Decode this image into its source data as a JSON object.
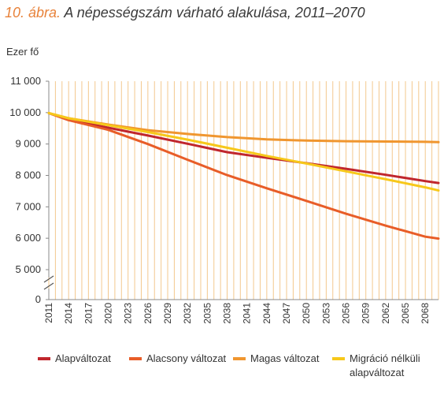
{
  "title": {
    "number": "10. ábra.",
    "text": "A népességszám várható alakulása, 2011–2070"
  },
  "colors": {
    "Alapváltozat": "#c0262d",
    "Alacsony változat": "#e85d28",
    "Magas változat": "#f0962f",
    "Migráció nélküli alapváltozat": "#f7c81a",
    "grid": "#f3c88e",
    "axis": "#888888"
  },
  "legend": [
    {
      "label": "Alapváltozat",
      "color_key": "Alapváltozat"
    },
    {
      "label": "Alacsony változat",
      "color_key": "Alacsony változat"
    },
    {
      "label": "Magas változat",
      "color_key": "Magas változat"
    },
    {
      "label": "Migráció nélküli alapváltozat",
      "color_key": "Migráció nélküli alapváltozat"
    }
  ],
  "chart_data": {
    "type": "line",
    "title": "A népességszám várható alakulása, 2011–2070",
    "ylabel": "Ezer fő",
    "xlabel": "",
    "ylim": [
      0,
      11000
    ],
    "axis_break": "between 0 and 5 000",
    "y_ticks": [
      "0",
      "5 000",
      "6 000",
      "7 000",
      "8 000",
      "9 000",
      "10 000",
      "11 000"
    ],
    "x_ticks": [
      "2011",
      "2014",
      "2017",
      "2020",
      "2023",
      "2026",
      "2029",
      "2032",
      "2035",
      "2038",
      "2041",
      "2044",
      "2047",
      "2050",
      "2053",
      "2056",
      "2059",
      "2062",
      "2065",
      "2068"
    ],
    "x_range": [
      2011,
      2070
    ],
    "grid": "vertical lines each year",
    "legend_position": "bottom",
    "series": [
      {
        "name": "Alapváltozat",
        "x": [
          2011,
          2014,
          2020,
          2026,
          2032,
          2038,
          2044,
          2050,
          2056,
          2062,
          2068,
          2070
        ],
        "values": [
          9986,
          9780,
          9520,
          9270,
          9010,
          8740,
          8560,
          8390,
          8210,
          8020,
          7820,
          7760
        ]
      },
      {
        "name": "Alacsony változat",
        "x": [
          2011,
          2014,
          2020,
          2026,
          2032,
          2038,
          2044,
          2050,
          2056,
          2062,
          2068,
          2070
        ],
        "values": [
          9986,
          9760,
          9450,
          9000,
          8500,
          8010,
          7590,
          7190,
          6780,
          6400,
          6050,
          5990
        ]
      },
      {
        "name": "Magas változat",
        "x": [
          2011,
          2014,
          2020,
          2026,
          2032,
          2038,
          2044,
          2050,
          2056,
          2062,
          2068,
          2070
        ],
        "values": [
          9986,
          9820,
          9620,
          9440,
          9320,
          9220,
          9150,
          9110,
          9090,
          9080,
          9070,
          9060
        ]
      },
      {
        "name": "Migráció nélküli alapváltozat",
        "x": [
          2011,
          2014,
          2020,
          2026,
          2032,
          2038,
          2044,
          2050,
          2056,
          2062,
          2068,
          2070
        ],
        "values": [
          9986,
          9820,
          9600,
          9380,
          9140,
          8880,
          8620,
          8380,
          8130,
          7880,
          7620,
          7520
        ]
      }
    ]
  }
}
